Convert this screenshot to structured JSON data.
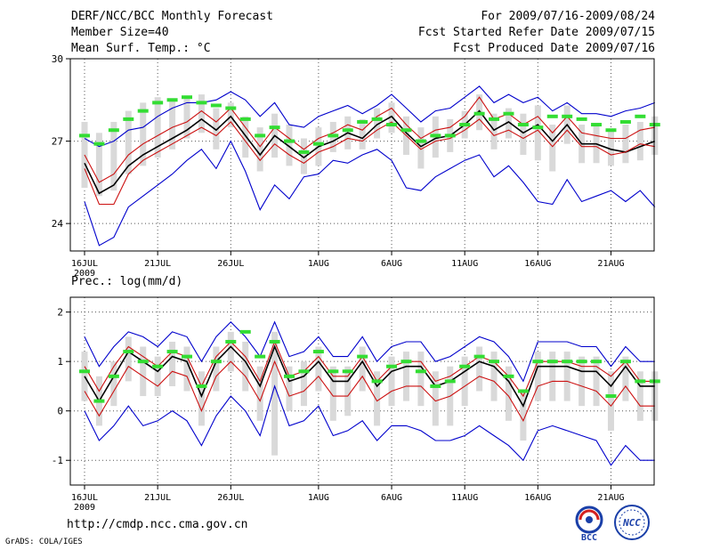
{
  "header": {
    "title": "DERF/NCC/BCC Monthly Forecast",
    "member_size": "Member Size=40",
    "variable": "Mean Surf. Temp.: °C",
    "period": "For 2009/07/16-2009/08/24",
    "started": "Fcst Started Refer Date 2009/07/15",
    "produced": "Fcst Produced Date 2009/07/16"
  },
  "footer": {
    "url": "http://cmdp.ncc.cma.gov.cn",
    "grads": "GrADS: COLA/IGES",
    "logo1_text": "BCC",
    "logo2_text": "NCC"
  },
  "colors": {
    "box": "#d9d9d9",
    "mean": "#000000",
    "stdev": "#cc1111",
    "range": "#0000cc",
    "clim": "#33dd33",
    "grid": "#555555"
  },
  "chart_data": [
    {
      "type": "line",
      "title": "Mean Surf. Temp.: °C",
      "xlabel": "",
      "ylabel": "",
      "ylim": [
        23,
        30
      ],
      "yticks": [
        24,
        27,
        30
      ],
      "xtick_labels": [
        "16JUL",
        "21JUL",
        "26JUL",
        "1AUG",
        "6AUG",
        "11AUG",
        "16AUG",
        "21AUG"
      ],
      "year_label": "2009",
      "xtick_days": [
        0,
        5,
        10,
        16,
        21,
        26,
        31,
        36
      ],
      "x_days": [
        0,
        1,
        2,
        3,
        4,
        5,
        6,
        7,
        8,
        9,
        10,
        11,
        12,
        13,
        14,
        15,
        16,
        17,
        18,
        19,
        20,
        21,
        22,
        23,
        24,
        25,
        26,
        27,
        28,
        29,
        30,
        31,
        32,
        33,
        34,
        35,
        36,
        37,
        38,
        39
      ],
      "series": [
        {
          "name": "ensemble mean",
          "values": [
            26.2,
            25.1,
            25.4,
            26.1,
            26.5,
            26.8,
            27.1,
            27.4,
            27.8,
            27.4,
            27.9,
            27.2,
            26.5,
            27.2,
            26.8,
            26.4,
            26.8,
            27.0,
            27.3,
            27.1,
            27.6,
            27.9,
            27.3,
            26.8,
            27.1,
            27.2,
            27.6,
            28.1,
            27.4,
            27.7,
            27.3,
            27.6,
            27.0,
            27.6,
            26.9,
            26.9,
            26.7,
            26.6,
            26.8,
            27.0
          ]
        },
        {
          "name": "mean + stdev",
          "values": [
            26.5,
            25.5,
            25.8,
            26.5,
            26.9,
            27.2,
            27.5,
            27.7,
            28.1,
            27.7,
            28.2,
            27.5,
            26.8,
            27.5,
            27.1,
            26.7,
            27.1,
            27.3,
            27.6,
            27.4,
            27.9,
            28.2,
            27.6,
            27.1,
            27.4,
            27.5,
            27.9,
            28.6,
            27.8,
            28.0,
            27.6,
            27.9,
            27.3,
            27.9,
            27.3,
            27.2,
            27.1,
            27.1,
            27.4,
            27.5
          ]
        },
        {
          "name": "mean - stdev",
          "values": [
            26.0,
            24.7,
            24.7,
            25.8,
            26.3,
            26.6,
            26.9,
            27.2,
            27.5,
            27.2,
            27.7,
            27.0,
            26.3,
            26.9,
            26.5,
            26.2,
            26.6,
            26.8,
            27.1,
            27.0,
            27.4,
            27.7,
            27.2,
            26.7,
            27.0,
            27.1,
            27.4,
            27.8,
            27.2,
            27.4,
            27.1,
            27.4,
            26.8,
            27.4,
            26.8,
            26.8,
            26.5,
            26.6,
            26.9,
            26.8
          ]
        },
        {
          "name": "ensemble max",
          "values": [
            27.1,
            26.8,
            27.0,
            27.4,
            27.5,
            27.9,
            28.2,
            28.4,
            28.4,
            28.5,
            28.8,
            28.5,
            27.9,
            28.4,
            27.6,
            27.5,
            27.9,
            28.1,
            28.3,
            28.0,
            28.3,
            28.7,
            28.2,
            27.7,
            28.1,
            28.2,
            28.6,
            29.0,
            28.4,
            28.7,
            28.4,
            28.6,
            28.1,
            28.4,
            28.0,
            28.0,
            27.9,
            28.1,
            28.2,
            28.4
          ]
        },
        {
          "name": "ensemble min",
          "values": [
            24.8,
            23.2,
            23.5,
            24.6,
            25.0,
            25.4,
            25.8,
            26.3,
            26.7,
            26.0,
            27.0,
            25.9,
            24.5,
            25.4,
            24.9,
            25.7,
            25.8,
            26.3,
            26.2,
            26.5,
            26.7,
            26.3,
            25.3,
            25.2,
            25.7,
            26.0,
            26.3,
            26.5,
            25.7,
            26.1,
            25.5,
            24.8,
            24.7,
            25.6,
            24.8,
            25.0,
            25.2,
            24.8,
            25.2,
            24.6
          ]
        },
        {
          "name": "climatology",
          "values": [
            27.2,
            26.9,
            27.4,
            27.8,
            28.1,
            28.4,
            28.5,
            28.6,
            28.4,
            28.3,
            28.2,
            27.8,
            27.2,
            27.5,
            27.0,
            26.6,
            26.9,
            27.2,
            27.4,
            27.7,
            27.8,
            27.6,
            27.4,
            27.0,
            27.2,
            27.2,
            27.6,
            28.0,
            27.8,
            28.0,
            27.6,
            27.5,
            27.9,
            27.9,
            27.8,
            27.6,
            27.4,
            27.7,
            27.9,
            27.6
          ]
        }
      ],
      "boxes": {
        "q75": [
          27.7,
          27.3,
          27.7,
          28.1,
          28.4,
          28.6,
          28.5,
          28.6,
          28.7,
          28.2,
          28.4,
          27.9,
          27.5,
          28.0,
          27.6,
          27.1,
          27.5,
          27.7,
          27.9,
          27.8,
          28.2,
          28.4,
          27.9,
          27.5,
          27.9,
          27.8,
          28.1,
          28.7,
          28.0,
          28.2,
          28.0,
          28.3,
          27.6,
          28.3,
          27.6,
          27.6,
          27.4,
          27.6,
          27.7,
          27.9
        ],
        "q25": [
          25.3,
          25.0,
          25.2,
          25.8,
          26.1,
          26.4,
          26.7,
          27.1,
          27.3,
          26.7,
          27.5,
          26.4,
          25.9,
          26.4,
          26.1,
          25.8,
          26.1,
          26.6,
          26.7,
          26.7,
          27.1,
          27.3,
          26.5,
          26.0,
          26.4,
          26.6,
          27.1,
          27.4,
          26.7,
          27.1,
          26.5,
          26.3,
          25.9,
          26.9,
          26.2,
          26.2,
          26.1,
          26.2,
          26.3,
          26.5
        ]
      }
    },
    {
      "type": "line",
      "title": "Prec.: log(mm/d)",
      "xlabel": "",
      "ylabel": "",
      "ylim": [
        -1.5,
        2.3
      ],
      "yticks": [
        -1,
        0,
        1,
        2
      ],
      "xtick_labels": [
        "16JUL",
        "21JUL",
        "26JUL",
        "1AUG",
        "6AUG",
        "11AUG",
        "16AUG",
        "21AUG"
      ],
      "year_label": "2009",
      "xtick_days": [
        0,
        5,
        10,
        16,
        21,
        26,
        31,
        36
      ],
      "x_days": [
        0,
        1,
        2,
        3,
        4,
        5,
        6,
        7,
        8,
        9,
        10,
        11,
        12,
        13,
        14,
        15,
        16,
        17,
        18,
        19,
        20,
        21,
        22,
        23,
        24,
        25,
        26,
        27,
        28,
        29,
        30,
        31,
        32,
        33,
        34,
        35,
        36,
        37,
        38,
        39
      ],
      "series": [
        {
          "name": "ensemble mean",
          "values": [
            0.7,
            0.2,
            0.7,
            1.2,
            1.0,
            0.8,
            1.1,
            1.0,
            0.3,
            1.0,
            1.3,
            1.0,
            0.5,
            1.3,
            0.6,
            0.7,
            1.0,
            0.6,
            0.6,
            1.0,
            0.5,
            0.8,
            0.9,
            0.9,
            0.5,
            0.6,
            0.8,
            1.0,
            0.9,
            0.6,
            0.1,
            0.9,
            0.9,
            0.9,
            0.8,
            0.8,
            0.5,
            0.9,
            0.5,
            0.5
          ]
        },
        {
          "name": "mean + stdev",
          "values": [
            0.9,
            0.4,
            0.9,
            1.3,
            1.1,
            0.9,
            1.2,
            1.1,
            0.5,
            1.1,
            1.4,
            1.1,
            0.6,
            1.4,
            0.7,
            0.8,
            1.1,
            0.7,
            0.7,
            1.1,
            0.6,
            0.9,
            1.0,
            1.0,
            0.6,
            0.7,
            0.9,
            1.1,
            1.0,
            0.7,
            0.3,
            1.0,
            1.0,
            1.0,
            0.9,
            0.9,
            0.7,
            1.0,
            0.6,
            0.6
          ]
        },
        {
          "name": "mean - stdev",
          "values": [
            0.4,
            -0.1,
            0.4,
            0.9,
            0.7,
            0.5,
            0.8,
            0.7,
            0.0,
            0.7,
            1.0,
            0.7,
            0.2,
            1.0,
            0.3,
            0.4,
            0.7,
            0.3,
            0.3,
            0.7,
            0.2,
            0.4,
            0.5,
            0.5,
            0.2,
            0.3,
            0.5,
            0.7,
            0.6,
            0.3,
            -0.2,
            0.5,
            0.6,
            0.6,
            0.5,
            0.4,
            0.1,
            0.5,
            0.1,
            0.1
          ]
        },
        {
          "name": "ensemble max",
          "values": [
            1.5,
            0.9,
            1.3,
            1.6,
            1.5,
            1.3,
            1.6,
            1.5,
            1.0,
            1.5,
            1.8,
            1.5,
            1.1,
            1.8,
            1.1,
            1.2,
            1.5,
            1.1,
            1.1,
            1.5,
            1.0,
            1.3,
            1.4,
            1.4,
            1.0,
            1.1,
            1.3,
            1.5,
            1.4,
            1.1,
            0.6,
            1.4,
            1.4,
            1.4,
            1.3,
            1.3,
            0.9,
            1.3,
            1.0,
            1.0
          ]
        },
        {
          "name": "ensemble min",
          "values": [
            0.0,
            -0.6,
            -0.3,
            0.1,
            -0.3,
            -0.2,
            0.0,
            -0.2,
            -0.7,
            -0.1,
            0.3,
            0.0,
            -0.5,
            0.5,
            -0.3,
            -0.2,
            0.1,
            -0.5,
            -0.4,
            -0.2,
            -0.6,
            -0.3,
            -0.3,
            -0.4,
            -0.6,
            -0.6,
            -0.5,
            -0.3,
            -0.5,
            -0.7,
            -1.0,
            -0.4,
            -0.3,
            -0.4,
            -0.5,
            -0.6,
            -1.1,
            -0.7,
            -1.0,
            -1.0
          ]
        },
        {
          "name": "climatology",
          "values": [
            0.8,
            0.2,
            0.7,
            1.2,
            1.0,
            0.9,
            1.2,
            1.1,
            0.5,
            1.0,
            1.4,
            1.6,
            1.1,
            1.4,
            0.7,
            0.8,
            1.2,
            0.8,
            0.8,
            1.1,
            0.6,
            0.9,
            1.0,
            0.8,
            0.5,
            0.6,
            0.9,
            1.1,
            1.0,
            0.7,
            0.4,
            1.0,
            1.0,
            1.0,
            1.0,
            1.0,
            0.3,
            1.0,
            0.6,
            0.6
          ]
        }
      ],
      "boxes": {
        "q75": [
          1.2,
          0.7,
          1.0,
          1.5,
          1.3,
          1.1,
          1.4,
          1.3,
          0.8,
          1.3,
          1.6,
          1.4,
          0.9,
          1.6,
          0.9,
          1.0,
          1.3,
          0.9,
          0.9,
          1.3,
          0.8,
          1.1,
          1.2,
          1.2,
          0.8,
          0.9,
          1.1,
          1.3,
          1.2,
          0.9,
          0.4,
          1.2,
          1.2,
          1.2,
          1.1,
          1.1,
          0.8,
          1.1,
          0.8,
          0.8
        ],
        "q25": [
          0.2,
          -0.3,
          0.1,
          0.6,
          0.3,
          0.3,
          0.5,
          0.4,
          -0.3,
          0.4,
          0.8,
          0.4,
          -0.2,
          -0.9,
          0.0,
          0.1,
          0.4,
          -0.2,
          -0.1,
          0.4,
          -0.3,
          0.1,
          0.2,
          0.1,
          -0.3,
          -0.3,
          0.1,
          0.4,
          0.2,
          -0.2,
          -0.6,
          0.2,
          0.2,
          0.2,
          0.1,
          0.1,
          -0.4,
          0.2,
          -0.2,
          -0.2
        ]
      }
    }
  ]
}
